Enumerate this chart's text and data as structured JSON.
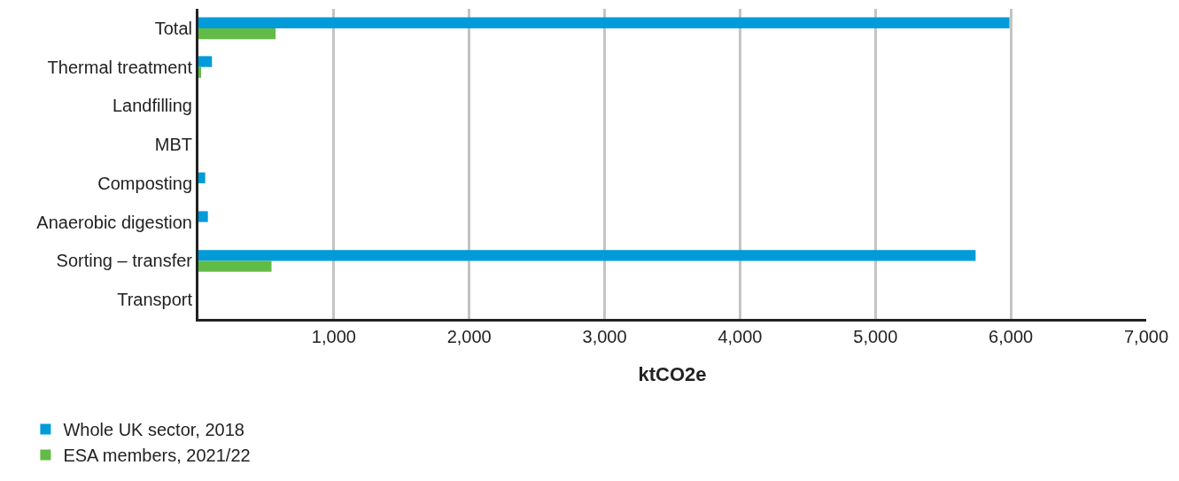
{
  "chart_data": {
    "type": "bar",
    "orientation": "horizontal",
    "xlabel": "ktCO2e",
    "categories": [
      "Total",
      "Thermal treatment",
      "Landfilling",
      "MBT",
      "Composting",
      "Anaerobic digestion",
      "Sorting – transfer",
      "Transport"
    ],
    "series": [
      {
        "name": "Whole UK sector, 2018",
        "color": "#009bd8",
        "values": [
          5990,
          100,
          0,
          0,
          50,
          70,
          5740,
          0
        ]
      },
      {
        "name": "ESA members, 2021/22",
        "color": "#62bb46",
        "values": [
          570,
          20,
          0,
          0,
          0,
          0,
          540,
          0
        ]
      }
    ],
    "xlim": [
      0,
      7000
    ],
    "xticks": [
      {
        "value": 1000,
        "label": "1,000"
      },
      {
        "value": 2000,
        "label": "2,000"
      },
      {
        "value": 3000,
        "label": "3,000"
      },
      {
        "value": 4000,
        "label": "4,000"
      },
      {
        "value": 5000,
        "label": "5,000"
      },
      {
        "value": 6000,
        "label": "6,000"
      },
      {
        "value": 7000,
        "label": "7,000"
      }
    ],
    "grid": "x",
    "legend": "bottom"
  }
}
